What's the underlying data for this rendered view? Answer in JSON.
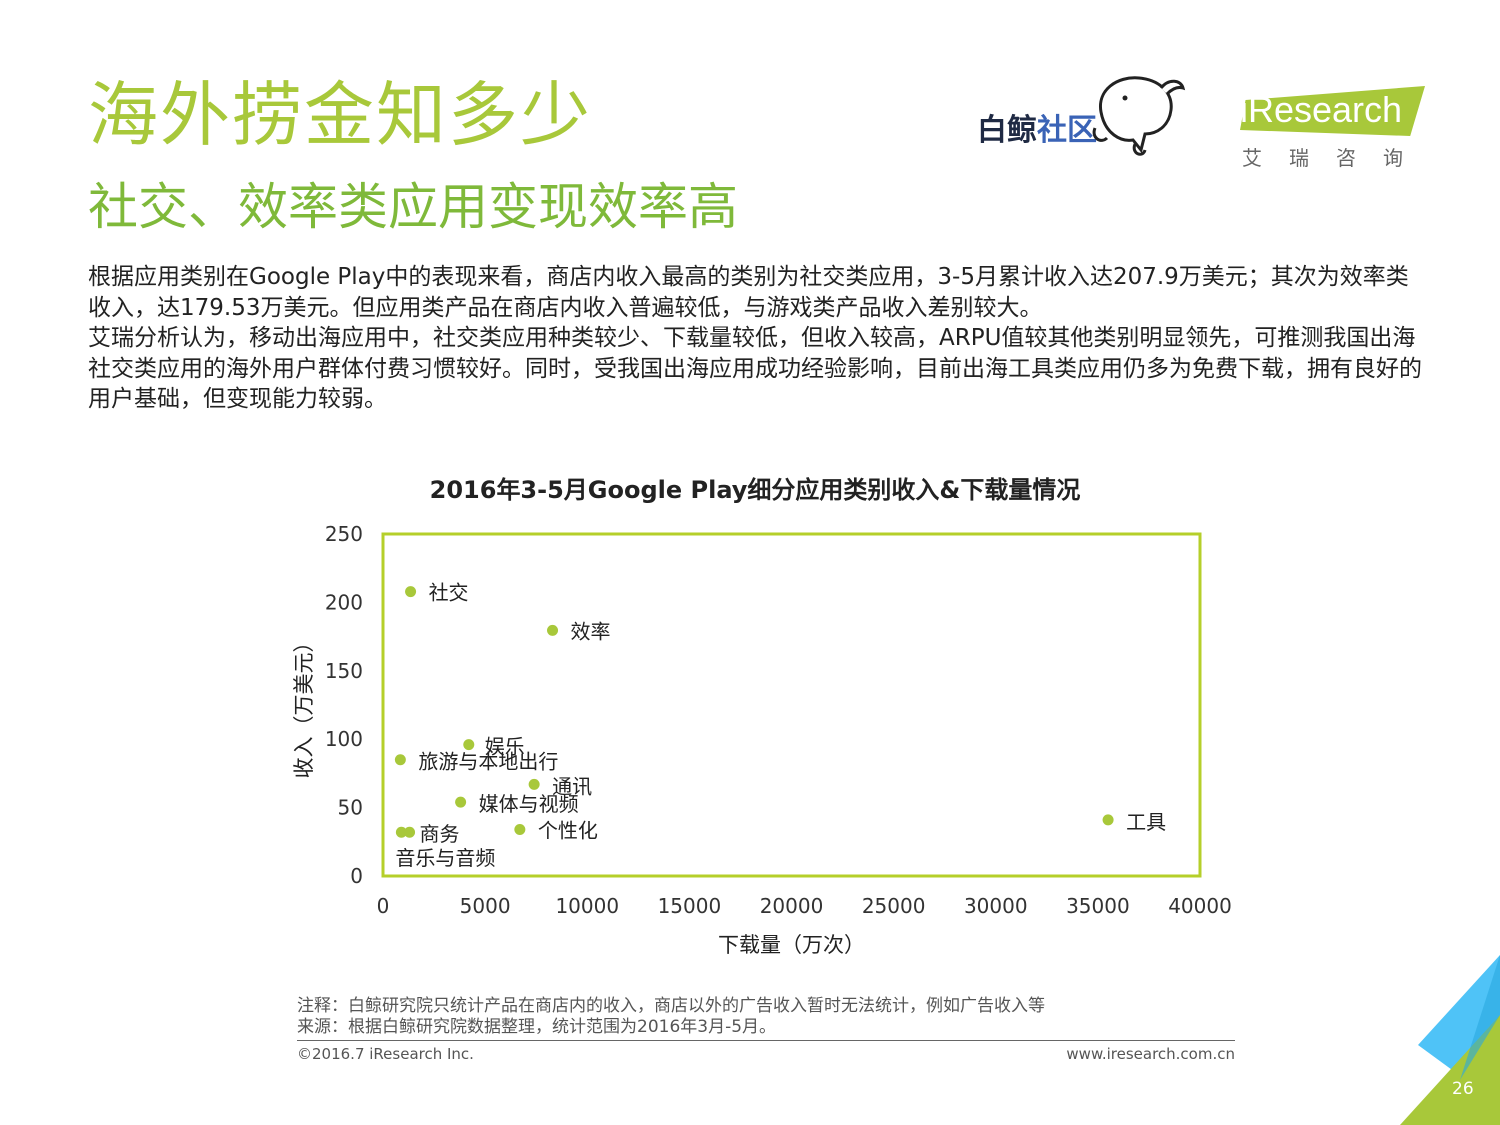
{
  "header": {
    "title": "海外捞金知多少",
    "subtitle": "社交、效率类应用变现效率高"
  },
  "logos": {
    "baijing_part1": "白鲸",
    "baijing_part2": "社区",
    "iresearch_en": "iResearch",
    "iresearch_cn": "艾瑞咨询"
  },
  "paragraphs": [
    "根据应用类别在Google Play中的表现来看，商店内收入最高的类别为社交类应用，3-5月累计收入达207.9万美元；其次为效率类收入，达179.53万美元。但应用类产品在商店内收入普遍较低，与游戏类产品收入差别较大。",
    "艾瑞分析认为，移动出海应用中，社交类应用种类较少、下载量较低，但收入较高，ARPU值较其他类别明显领先，可推测我国出海社交类应用的海外用户群体付费习惯较好。同时，受我国出海应用成功经验影响，目前出海工具类应用仍多为免费下载，拥有良好的用户基础，但变现能力较弱。"
  ],
  "chart_data": {
    "type": "scatter",
    "title": "2016年3-5月Google Play细分应用类别收入&下载量情况",
    "xlabel": "下载量（万次）",
    "ylabel": "收入（万美元）",
    "xlim": [
      0,
      40000
    ],
    "ylim": [
      0,
      250
    ],
    "xticks": [
      0,
      5000,
      10000,
      15000,
      20000,
      25000,
      30000,
      35000,
      40000
    ],
    "yticks": [
      0,
      50,
      100,
      150,
      200,
      250
    ],
    "grid": false,
    "legend": "none",
    "marker_color": "#a8c83a",
    "frame_color": "#b5cf2a",
    "points": [
      {
        "label": "社交",
        "x": 1350,
        "y": 207.9
      },
      {
        "label": "效率",
        "x": 8300,
        "y": 179.53
      },
      {
        "label": "娱乐",
        "x": 4200,
        "y": 96
      },
      {
        "label": "旅游与本地出行",
        "x": 850,
        "y": 85
      },
      {
        "label": "通讯",
        "x": 7400,
        "y": 67
      },
      {
        "label": "媒体与视频",
        "x": 3800,
        "y": 54
      },
      {
        "label": "工具",
        "x": 35500,
        "y": 41
      },
      {
        "label": "个性化",
        "x": 6700,
        "y": 34
      },
      {
        "label": "商务",
        "x": 1300,
        "y": 32
      },
      {
        "label": "音乐与音频",
        "x": 900,
        "y": 32
      }
    ]
  },
  "notes": {
    "note": "注释：白鲸研究院只统计产品在商店内的收入，商店以外的广告收入暂时无法统计，例如广告收入等",
    "source": "来源：根据白鲸研究院数据整理，统计范围为2016年3月-5月。"
  },
  "footer": {
    "copyright": "©2016.7 iResearch Inc.",
    "website": "www.iresearch.com.cn",
    "page": "26"
  },
  "colors": {
    "title": "#a8c83a",
    "subtitle": "#7fb93a",
    "corner_blue": "#4fc3f7",
    "corner_green": "#a8c83a"
  }
}
